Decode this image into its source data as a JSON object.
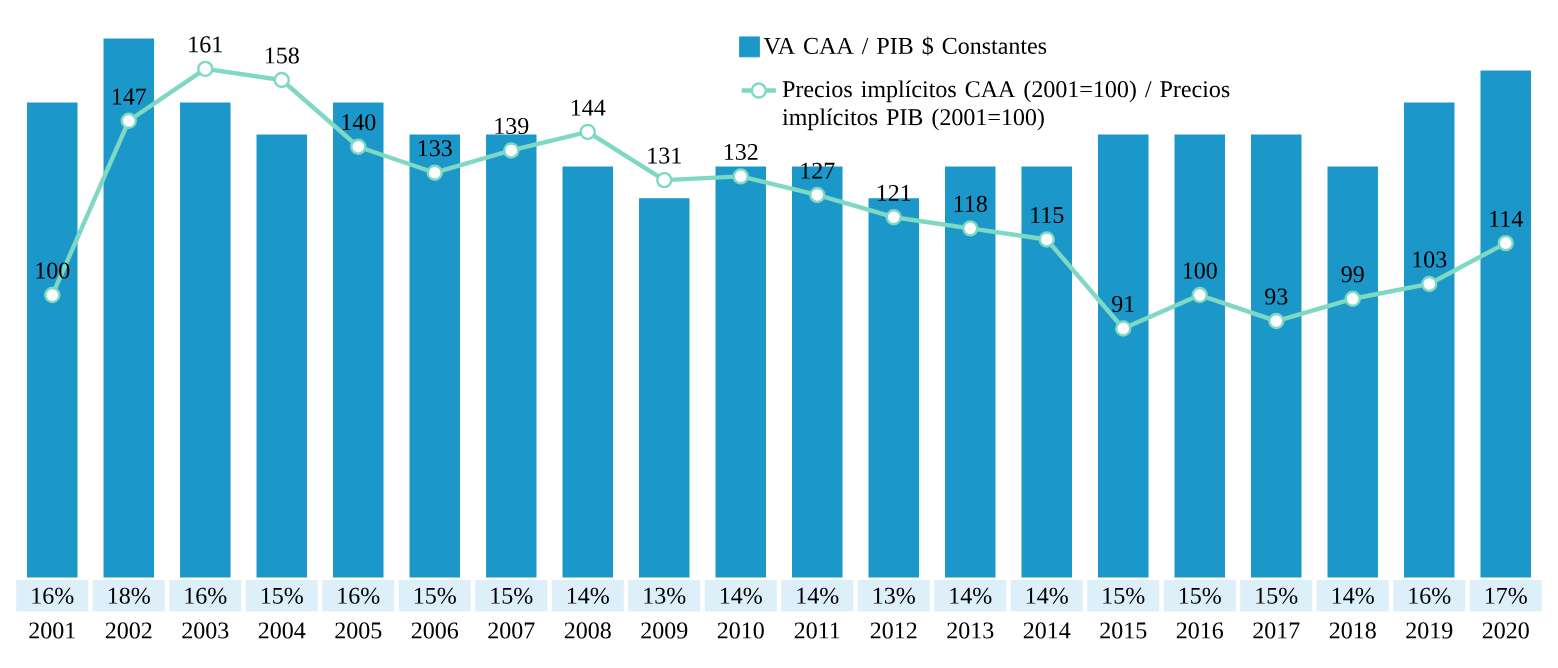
{
  "chart_data": {
    "type": "bar",
    "legend": "top",
    "marker": "circle",
    "categories": [
      "2001",
      "2002",
      "2003",
      "2004",
      "2005",
      "2006",
      "2007",
      "2008",
      "2009",
      "2010",
      "2011",
      "2012",
      "2013",
      "2014",
      "2015",
      "2016",
      "2017",
      "2018",
      "2019",
      "2020"
    ],
    "series": [
      {
        "name": "VA CAA / PIB $ Constantes",
        "color": "#1b98c9",
        "values": [
          16,
          18,
          16,
          15,
          16,
          15,
          15,
          14,
          13,
          14,
          14,
          13,
          14,
          14,
          15,
          15,
          15,
          14,
          16,
          17
        ],
        "value_labels": [
          "16%",
          "18%",
          "16%",
          "15%",
          "16%",
          "15%",
          "15%",
          "14%",
          "13%",
          "14%",
          "14%",
          "13%",
          "14%",
          "14%",
          "15%",
          "15%",
          "15%",
          "14%",
          "16%",
          "17%"
        ]
      },
      {
        "name": "Precios implícitos CAA (2001=100) / Precios implícitos PIB (2001=100)",
        "type": "line",
        "axis": "y2",
        "color": "#7fd8c3",
        "values": [
          100,
          147,
          161,
          158,
          140,
          133,
          139,
          144,
          131,
          132,
          127,
          121,
          118,
          115,
          91,
          100,
          93,
          99,
          103,
          114
        ],
        "value_labels": [
          "100",
          "147",
          "161",
          "158",
          "140",
          "133",
          "139",
          "144",
          "131",
          "132",
          "127",
          "121",
          "118",
          "115",
          "91",
          "100",
          "93",
          "99",
          "103",
          "114"
        ]
      }
    ]
  }
}
